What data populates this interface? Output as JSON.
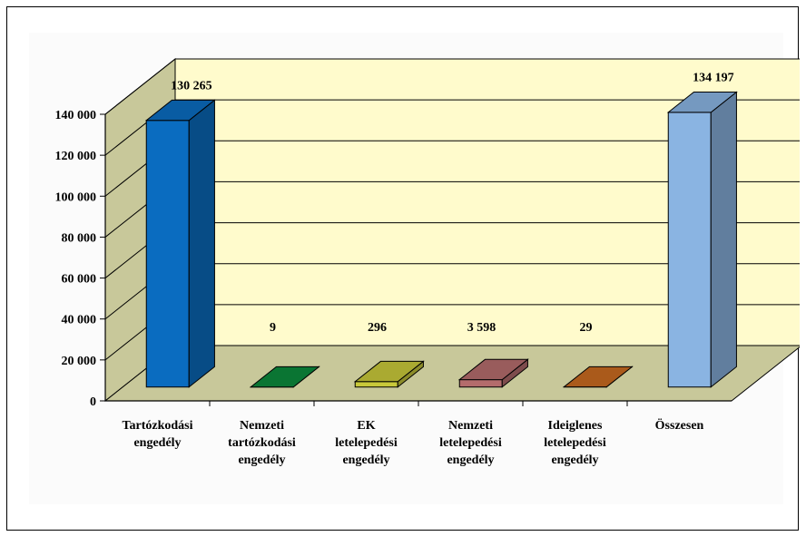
{
  "chart_data": {
    "type": "bar",
    "title": "",
    "xlabel": "",
    "ylabel": "",
    "categories": [
      [
        "Tartózkodási",
        "engedély"
      ],
      [
        "Nemzeti",
        "tartózkodási",
        "engedély"
      ],
      [
        "EK",
        "letelepedési",
        "engedély"
      ],
      [
        "Nemzeti",
        "letelepedési",
        "engedély"
      ],
      [
        "Ideiglenes",
        "letelepedési",
        "engedély"
      ],
      [
        "Összesen"
      ]
    ],
    "values": [
      130265,
      9,
      296,
      3598,
      29,
      134197
    ],
    "data_labels": [
      "130 265",
      "9",
      "296",
      "3 598",
      "29",
      "134 197"
    ],
    "ylim": [
      0,
      140000
    ],
    "yticks": [
      0,
      20000,
      40000,
      60000,
      80000,
      100000,
      120000,
      140000
    ],
    "ytick_labels": [
      "0",
      "20 000",
      "40 000",
      "60 000",
      "80 000",
      "100 000",
      "120 000",
      "140 000"
    ],
    "grid": true,
    "legend": "none",
    "style": "3d-column",
    "colors": {
      "bars": [
        "#0a6cc0",
        "#0c8a3c",
        "#c8c83a",
        "#b46c6c",
        "#c86a20",
        "#8ab4e2"
      ],
      "wall": "#fffbcc",
      "floor": "#c8c89a",
      "side_wall": "#c8c89a",
      "background_panel": "#fbfbfb"
    }
  }
}
